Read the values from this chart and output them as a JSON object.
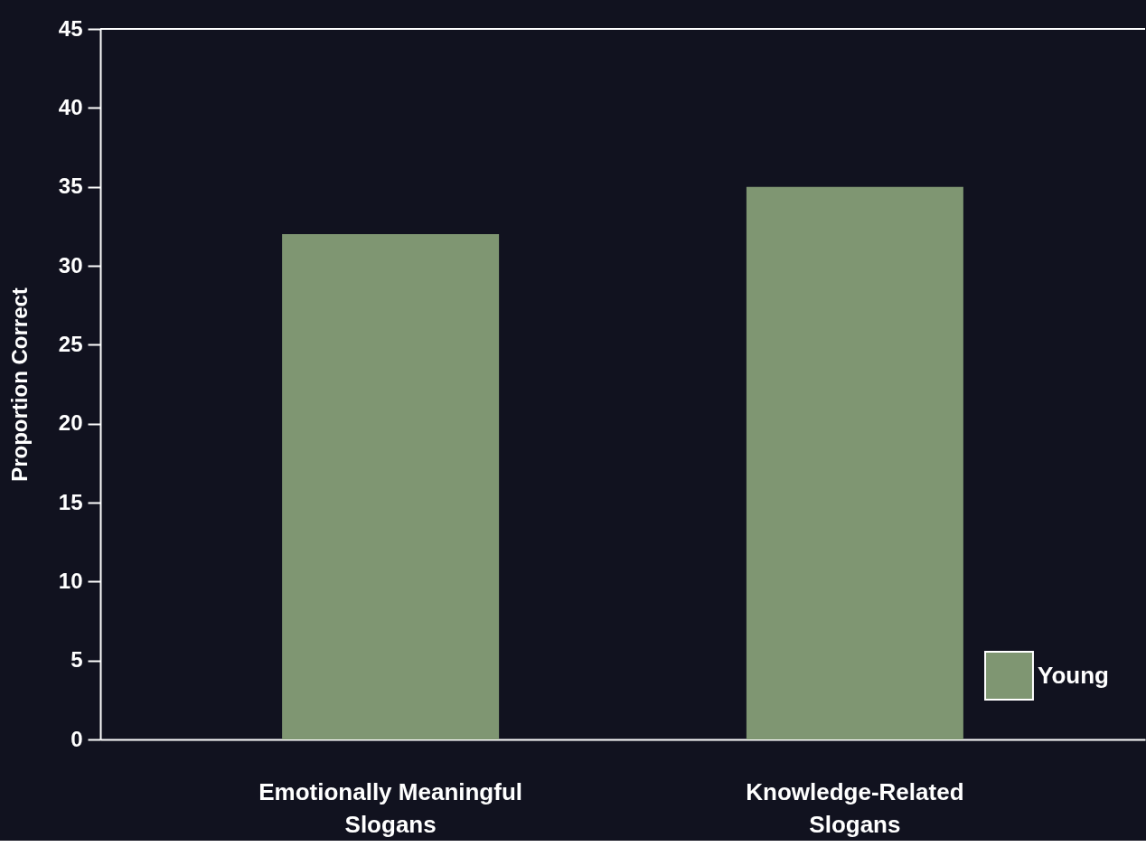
{
  "chart_data": {
    "type": "bar",
    "ylabel": "Proportion Correct",
    "categories": [
      "Emotionally Meaningful Slogans",
      "Knowledge-Related Slogans"
    ],
    "series": [
      {
        "name": "Young",
        "color": "#7f9672",
        "values": [
          32,
          35
        ]
      }
    ],
    "ylim": [
      0,
      45
    ],
    "yticks": [
      0,
      5,
      10,
      15,
      20,
      25,
      30,
      35,
      40,
      45
    ],
    "grid": false,
    "legend": "bottom right"
  }
}
